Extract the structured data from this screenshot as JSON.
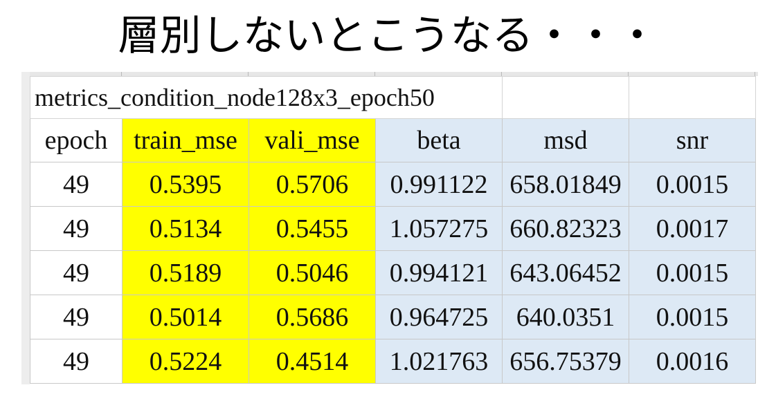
{
  "slide": {
    "title": "層別しないとこうなる・・・"
  },
  "sheet": {
    "caption": "metrics_condition_node128x3_epoch50",
    "columns": [
      "epoch",
      "train_mse",
      "vali_mse",
      "beta",
      "msd",
      "snr"
    ],
    "rows": [
      [
        "49",
        "0.5395",
        "0.5706",
        "0.991122",
        "658.01849",
        "0.0015"
      ],
      [
        "49",
        "0.5134",
        "0.5455",
        "1.057275",
        "660.82323",
        "0.0017"
      ],
      [
        "49",
        "0.5189",
        "0.5046",
        "0.994121",
        "643.06452",
        "0.0015"
      ],
      [
        "49",
        "0.5014",
        "0.5686",
        "0.964725",
        "640.0351",
        "0.0015"
      ],
      [
        "49",
        "0.5224",
        "0.4514",
        "1.021763",
        "656.75379",
        "0.0016"
      ]
    ],
    "colors": {
      "highlight_yellow": "#ffff00",
      "highlight_blue": "#dde9f5"
    }
  }
}
